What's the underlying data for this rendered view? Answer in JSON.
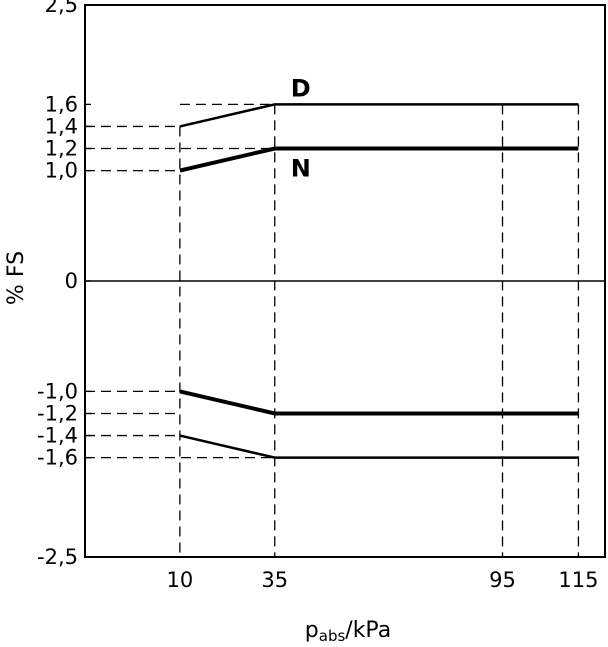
{
  "chart_data": {
    "type": "line",
    "xlabel": {
      "main": "p",
      "subscript": "abs",
      "unit": "/kPa"
    },
    "ylabel": "% FS",
    "xlim": [
      -15,
      122
    ],
    "ylim": [
      -2.5,
      2.5
    ],
    "x_ticks": [
      {
        "value": 10,
        "label": "10"
      },
      {
        "value": 35,
        "label": "35"
      },
      {
        "value": 95,
        "label": "95"
      },
      {
        "value": 115,
        "label": "115"
      }
    ],
    "y_ticks": [
      {
        "value": 2.5,
        "label": "2,5"
      },
      {
        "value": 1.6,
        "label": "1,6"
      },
      {
        "value": 1.4,
        "label": "1,4"
      },
      {
        "value": 1.2,
        "label": "1,2"
      },
      {
        "value": 1.0,
        "label": "1,0"
      },
      {
        "value": 0,
        "label": "0"
      },
      {
        "value": -1.0,
        "label": "-1,0"
      },
      {
        "value": -1.2,
        "label": "-1,2"
      },
      {
        "value": -1.4,
        "label": "-1,4"
      },
      {
        "value": -1.6,
        "label": "-1,6"
      },
      {
        "value": -2.5,
        "label": "-2,5"
      }
    ],
    "zero_line": 0,
    "guides": {
      "vertical": [
        10,
        35,
        95,
        115
      ],
      "horizontal": [
        {
          "y": 1.6,
          "x_from": 10,
          "x_to": 35
        },
        {
          "y": 1.4,
          "x_from": -15,
          "x_to": 10
        },
        {
          "y": 1.2,
          "x_from": -15,
          "x_to": 35
        },
        {
          "y": 1.0,
          "x_from": -15,
          "x_to": 10
        },
        {
          "y": -1.0,
          "x_from": -15,
          "x_to": 10
        },
        {
          "y": -1.2,
          "x_from": -15,
          "x_to": 10
        },
        {
          "y": -1.4,
          "x_from": -15,
          "x_to": 10
        },
        {
          "y": -1.6,
          "x_from": -15,
          "x_to": 35
        }
      ]
    },
    "series": [
      {
        "name": "D",
        "weight": "thin",
        "x": [
          10,
          35,
          115
        ],
        "y": [
          1.4,
          1.6,
          1.6
        ]
      },
      {
        "name": "N",
        "weight": "thick",
        "x": [
          10,
          35,
          115
        ],
        "y": [
          1.0,
          1.2,
          1.2
        ]
      },
      {
        "weight": "thick",
        "x": [
          10,
          35,
          115
        ],
        "y": [
          -1.0,
          -1.2,
          -1.2
        ]
      },
      {
        "weight": "thin",
        "x": [
          10,
          35,
          115
        ],
        "y": [
          -1.4,
          -1.6,
          -1.6
        ]
      }
    ]
  }
}
